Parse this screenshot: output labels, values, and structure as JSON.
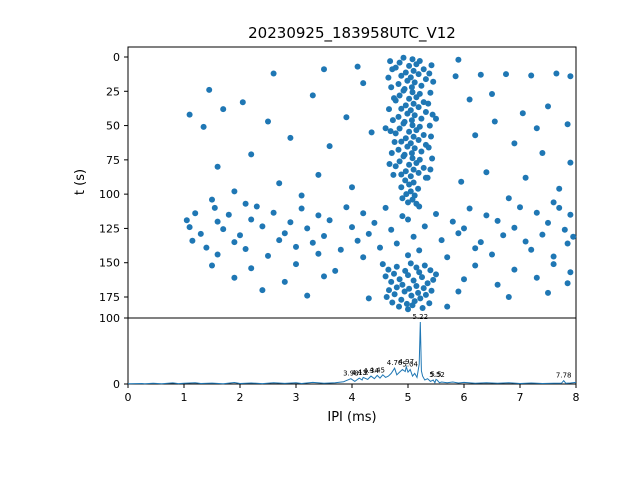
{
  "title": "20230925_183958UTC_V12",
  "accent_color": "#1f77b4",
  "chart_data": [
    {
      "type": "scatter",
      "title": "20230925_183958UTC_V12",
      "xlabel": "",
      "ylabel": "t (s)",
      "xlim": [
        0,
        8
      ],
      "ylim": [
        190,
        -8
      ],
      "y_inverted": true,
      "grid": false,
      "marker_color": "#1f77b4",
      "yticks": [
        0,
        25,
        50,
        75,
        100,
        125,
        150,
        175
      ],
      "xticks": [
        0,
        1,
        2,
        3,
        4,
        5,
        6,
        7,
        8
      ],
      "points_xt": [
        4.92,
        0.5,
        5.08,
        1.7,
        5.21,
        2.9,
        4.85,
        4.1,
        5.15,
        5.3,
        5.02,
        6.5,
        4.78,
        7.7,
        5.28,
        8.9,
        5.1,
        10.1,
        4.96,
        11.3,
        5.19,
        12.5,
        4.88,
        13.7,
        5.05,
        14.9,
        5.32,
        16.1,
        4.99,
        17.3,
        5.12,
        18.5,
        4.83,
        19.7,
        5.24,
        20.9,
        5.07,
        22.1,
        4.94,
        23.3,
        4.92,
        24.5,
        5.08,
        25.7,
        5.21,
        26.9,
        4.85,
        28.1,
        5.15,
        29.3,
        5.02,
        30.5,
        4.78,
        31.7,
        5.28,
        32.9,
        5.1,
        34.1,
        4.96,
        35.3,
        5.19,
        36.5,
        4.88,
        37.7,
        5.05,
        38.9,
        5.32,
        40.1,
        4.99,
        41.3,
        5.12,
        42.5,
        4.83,
        43.7,
        5.24,
        44.9,
        5.07,
        46.1,
        4.94,
        47.3,
        4.92,
        48.5,
        5.08,
        49.7,
        5.21,
        50.9,
        4.85,
        52.1,
        5.15,
        53.3,
        5.02,
        54.5,
        4.78,
        55.7,
        5.28,
        56.9,
        5.1,
        58.1,
        4.96,
        59.3,
        5.19,
        60.5,
        4.88,
        61.7,
        5.05,
        62.9,
        5.32,
        64.1,
        4.99,
        65.3,
        5.12,
        66.5,
        4.83,
        67.7,
        5.24,
        68.9,
        5.07,
        70.1,
        4.94,
        71.3,
        4.92,
        72.5,
        5.08,
        73.7,
        5.21,
        74.9,
        4.85,
        76.1,
        5.15,
        77.3,
        5.02,
        78.5,
        4.78,
        79.7,
        5.28,
        80.9,
        5.1,
        82.1,
        4.96,
        83.3,
        5.19,
        84.5,
        4.88,
        85.7,
        5.05,
        86.9,
        5.32,
        88.1,
        4.68,
        3,
        5.42,
        6,
        4.72,
        9,
        5.38,
        12,
        4.65,
        15,
        5.45,
        18,
        4.7,
        22,
        5.4,
        26,
        4.75,
        30,
        5.36,
        34,
        4.66,
        38,
        5.44,
        42,
        4.73,
        46,
        5.39,
        50,
        4.69,
        54,
        5.41,
        58,
        4.76,
        62,
        5.37,
        66,
        4.71,
        70,
        5.43,
        74,
        4.67,
        78,
        5.4,
        82,
        4.74,
        86,
        5.35,
        88,
        5.5,
        45,
        4.6,
        52,
        4.95,
        90,
        5.1,
        91.5,
        5.02,
        93,
        4.88,
        95,
        5.18,
        96,
        5.05,
        98,
        4.97,
        100,
        5.12,
        101,
        4.9,
        103,
        5.08,
        104,
        5.0,
        106,
        5.15,
        107,
        1.55,
        110,
        2.3,
        109,
        3.1,
        110.5,
        3.9,
        109.5,
        4.6,
        110,
        5.2,
        109,
        6.1,
        110.5,
        7.0,
        109.5,
        7.7,
        110,
        1.2,
        114,
        1.8,
        115,
        2.6,
        113.5,
        3.4,
        115.5,
        4.2,
        114,
        4.9,
        116,
        5.5,
        114.5,
        6.4,
        115.5,
        7.3,
        113.5,
        7.9,
        115,
        1.05,
        119,
        1.6,
        120,
        2.2,
        118.5,
        2.9,
        120.5,
        3.6,
        119,
        4.4,
        121,
        5.0,
        118.5,
        5.8,
        120,
        6.6,
        119.5,
        7.5,
        121,
        1.1,
        124,
        1.7,
        125.5,
        2.4,
        123.5,
        3.2,
        125,
        4.0,
        124,
        4.7,
        126,
        5.3,
        123.5,
        6.0,
        125,
        6.9,
        124.5,
        7.8,
        126,
        1.3,
        129,
        2.0,
        130,
        2.8,
        128.5,
        3.5,
        130.5,
        4.3,
        129,
        5.1,
        131,
        5.9,
        128.5,
        6.7,
        130,
        7.4,
        129.5,
        7.95,
        131,
        1.15,
        134,
        1.9,
        135,
        2.7,
        133.5,
        3.3,
        135.5,
        4.1,
        134,
        4.8,
        136,
        5.6,
        133.5,
        6.3,
        135,
        7.1,
        134.5,
        7.85,
        136,
        1.4,
        139,
        2.1,
        140,
        3.0,
        138.5,
        3.8,
        140.5,
        4.5,
        139,
        5.2,
        141,
        6.2,
        139.5,
        7.2,
        140.5,
        1.6,
        144,
        2.5,
        145,
        3.4,
        143.5,
        4.2,
        146,
        5.0,
        144.5,
        5.7,
        146,
        6.5,
        144,
        7.6,
        145.5,
        4.55,
        151,
        5.05,
        150.5,
        5.3,
        152,
        4.8,
        153,
        5.15,
        153.5,
        4.65,
        155,
        5.4,
        155.5,
        4.95,
        156,
        5.2,
        157,
        4.75,
        158,
        5.5,
        158.5,
        5.0,
        159,
        4.6,
        160,
        5.25,
        160.5,
        4.85,
        162,
        5.45,
        162.5,
        5.1,
        163,
        4.7,
        164,
        5.35,
        165,
        4.9,
        166,
        5.15,
        167,
        4.8,
        168,
        5.28,
        168.5,
        5.02,
        169,
        4.66,
        170,
        5.42,
        170.5,
        4.94,
        171,
        5.18,
        172,
        4.76,
        173,
        5.32,
        173.5,
        5.06,
        174,
        4.62,
        175,
        5.22,
        176,
        4.88,
        177,
        5.12,
        178,
        4.72,
        179,
        5.38,
        179.5,
        4.98,
        180,
        5.08,
        181,
        4.84,
        182,
        5.26,
        183,
        5.0,
        184,
        1.5,
        152,
        2.2,
        154,
        3.0,
        151,
        3.7,
        156,
        6.2,
        152,
        6.9,
        155,
        7.6,
        151,
        7.9,
        157,
        1.9,
        161,
        2.8,
        164,
        3.5,
        160,
        6.0,
        162,
        6.6,
        166,
        7.3,
        161,
        7.85,
        165,
        2.4,
        170,
        3.2,
        174,
        5.9,
        171,
        6.8,
        175,
        7.5,
        172,
        4.3,
        176,
        5.7,
        182,
        1.45,
        24,
        1.1,
        42,
        1.35,
        51,
        1.7,
        38,
        2.05,
        33,
        2.5,
        47,
        2.9,
        59,
        3.3,
        28,
        3.6,
        65,
        2.2,
        71,
        1.6,
        80,
        3.9,
        44,
        4.2,
        19,
        4.35,
        55,
        3.4,
        86,
        2.7,
        92,
        1.9,
        98,
        3.1,
        101,
        4.0,
        95,
        5.85,
        14,
        6.3,
        13,
        6.75,
        12.5,
        7.2,
        13.5,
        7.65,
        12,
        7.9,
        14,
        6.1,
        31,
        6.5,
        27,
        7.05,
        41,
        7.5,
        36,
        7.85,
        49,
        6.2,
        57,
        6.9,
        63,
        7.4,
        70,
        7.9,
        77,
        6.4,
        84,
        5.95,
        91,
        7.1,
        88,
        7.7,
        96,
        2.6,
        12,
        3.5,
        9,
        4.1,
        7,
        5.9,
        2,
        6.55,
        47,
        7.3,
        52,
        1.5,
        104,
        2.1,
        107,
        6.8,
        103,
        7.6,
        106
      ]
    },
    {
      "type": "line",
      "xlabel": "IPI (ms)",
      "ylabel": "",
      "xlim": [
        0,
        8
      ],
      "ylim": [
        0,
        100
      ],
      "grid": false,
      "line_color": "#1f77b4",
      "yticks": [
        0,
        100
      ],
      "xticks": [
        0,
        1,
        2,
        3,
        4,
        5,
        6,
        7,
        8
      ],
      "x": [
        0,
        0.25,
        0.3,
        0.45,
        0.6,
        0.8,
        0.9,
        1.0,
        1.2,
        1.3,
        1.5,
        1.7,
        1.9,
        2.0,
        2.2,
        2.4,
        2.6,
        2.8,
        3.0,
        3.1,
        3.3,
        3.5,
        3.7,
        3.85,
        3.98,
        4.05,
        4.13,
        4.18,
        4.2,
        4.28,
        4.34,
        4.4,
        4.45,
        4.5,
        4.55,
        4.6,
        4.65,
        4.7,
        4.76,
        4.8,
        4.85,
        4.9,
        4.95,
        4.97,
        5.0,
        5.04,
        5.08,
        5.12,
        5.16,
        5.2,
        5.22,
        5.24,
        5.26,
        5.3,
        5.35,
        5.4,
        5.45,
        5.48,
        5.5,
        5.52,
        5.56,
        5.6,
        5.7,
        5.8,
        5.9,
        6.0,
        6.2,
        6.4,
        6.6,
        6.8,
        7.0,
        7.2,
        7.4,
        7.6,
        7.74,
        7.78,
        7.82,
        7.9,
        8.0
      ],
      "y": [
        0.5,
        0.8,
        0.4,
        1.0,
        0.5,
        1.6,
        0.6,
        1.2,
        2.0,
        0.7,
        1.3,
        0.5,
        2.2,
        0.8,
        1.5,
        0.6,
        2.0,
        0.9,
        1.8,
        0.7,
        2.4,
        1.0,
        2.0,
        3.5,
        8,
        4,
        9,
        6,
        10,
        7,
        12,
        8,
        13,
        9,
        14,
        10,
        12,
        16,
        24,
        14,
        18,
        22,
        19,
        26,
        18,
        22,
        12,
        16,
        10,
        30,
        94,
        20,
        12,
        6,
        8,
        4,
        6,
        2,
        7,
        6,
        2,
        3,
        2,
        3,
        1.5,
        2.5,
        1,
        2,
        1,
        1.8,
        0.8,
        1.5,
        0.7,
        1.2,
        1,
        5,
        1,
        1.5,
        2.5
      ],
      "annotations": [
        {
          "x": 3.98,
          "y": 8,
          "label": "3.98"
        },
        {
          "x": 4.13,
          "y": 9,
          "label": "4.13"
        },
        {
          "x": 4.2,
          "y": 10,
          "label": "4.2"
        },
        {
          "x": 4.34,
          "y": 12,
          "label": "4.34"
        },
        {
          "x": 4.45,
          "y": 13,
          "label": "4.45"
        },
        {
          "x": 4.76,
          "y": 24,
          "label": "4.76"
        },
        {
          "x": 4.97,
          "y": 26,
          "label": "4.97"
        },
        {
          "x": 5.04,
          "y": 22,
          "label": "5.04"
        },
        {
          "x": 5.22,
          "y": 94,
          "label": "5.22"
        },
        {
          "x": 5.5,
          "y": 7,
          "label": "5.5"
        },
        {
          "x": 5.52,
          "y": 6,
          "label": "5.52"
        },
        {
          "x": 7.78,
          "y": 5,
          "label": "7.78"
        }
      ]
    }
  ]
}
